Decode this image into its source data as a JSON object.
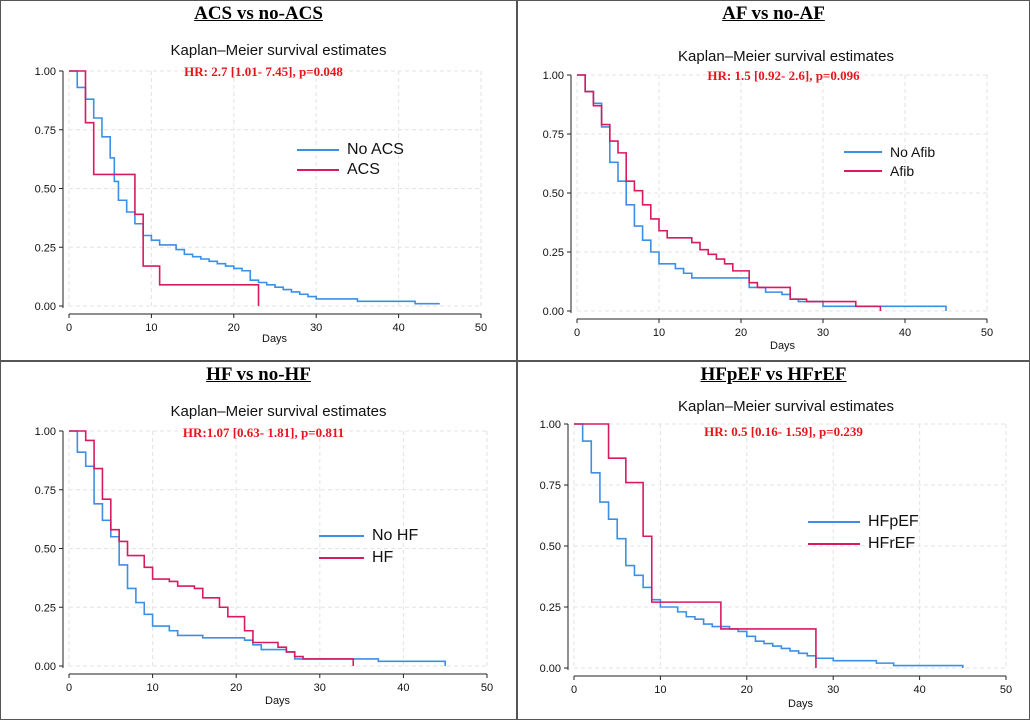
{
  "colors": {
    "blue": "#3d8fe6",
    "red": "#d81a60",
    "hr_red": "#e8141c",
    "grid": "#e3e3e3"
  },
  "chart_data": [
    {
      "type": "line",
      "subtype": "kaplan-meier-step",
      "panel_title": "ACS vs no-ACS",
      "title": "Kaplan–Meier survival estimates",
      "annotation": "HR:  2.7 [1.01- 7.45], p=0.048",
      "xlabel": "Days",
      "ylabel": "",
      "xlim": [
        0,
        50
      ],
      "ylim": [
        0,
        1
      ],
      "xticks": [
        0,
        10,
        20,
        30,
        40,
        50
      ],
      "yticks": [
        "0.00",
        "0.25",
        "0.50",
        "0.75",
        "1.00"
      ],
      "legend": "center-right",
      "series": [
        {
          "name": "No ACS",
          "color": "#3d8fe6",
          "points": [
            [
              0,
              1.0
            ],
            [
              1,
              0.93
            ],
            [
              2,
              0.88
            ],
            [
              3,
              0.8
            ],
            [
              4,
              0.72
            ],
            [
              5,
              0.63
            ],
            [
              5.5,
              0.53
            ],
            [
              6,
              0.45
            ],
            [
              7,
              0.4
            ],
            [
              8,
              0.35
            ],
            [
              9,
              0.3
            ],
            [
              10,
              0.28
            ],
            [
              11,
              0.26
            ],
            [
              13,
              0.24
            ],
            [
              14,
              0.22
            ],
            [
              15,
              0.21
            ],
            [
              16,
              0.2
            ],
            [
              17,
              0.19
            ],
            [
              18,
              0.18
            ],
            [
              19,
              0.17
            ],
            [
              20,
              0.16
            ],
            [
              21,
              0.15
            ],
            [
              22,
              0.11
            ],
            [
              23,
              0.1
            ],
            [
              24,
              0.09
            ],
            [
              25,
              0.08
            ],
            [
              26,
              0.07
            ],
            [
              27,
              0.06
            ],
            [
              28,
              0.05
            ],
            [
              29,
              0.04
            ],
            [
              30,
              0.03
            ],
            [
              34,
              0.03
            ],
            [
              35,
              0.02
            ],
            [
              42,
              0.01
            ],
            [
              45,
              0.01
            ]
          ]
        },
        {
          "name": "ACS",
          "color": "#d81a60",
          "points": [
            [
              0,
              1.0
            ],
            [
              2,
              0.78
            ],
            [
              3,
              0.56
            ],
            [
              8,
              0.39
            ],
            [
              9,
              0.17
            ],
            [
              11,
              0.09
            ],
            [
              23,
              0.0
            ]
          ]
        }
      ]
    },
    {
      "type": "line",
      "subtype": "kaplan-meier-step",
      "panel_title": "AF vs no-AF",
      "title": "Kaplan–Meier survival estimates",
      "annotation": "HR: 1.5 [0.92- 2.6], p=0.096",
      "xlabel": "Days",
      "ylabel": "",
      "xlim": [
        0,
        50
      ],
      "ylim": [
        0,
        1
      ],
      "xticks": [
        0,
        10,
        20,
        30,
        40,
        50
      ],
      "yticks": [
        "0.00",
        "0.25",
        "0.50",
        "0.75",
        "1.00"
      ],
      "legend": "center-right",
      "series": [
        {
          "name": "No Afib",
          "color": "#3d8fe6",
          "points": [
            [
              0,
              1.0
            ],
            [
              1,
              0.93
            ],
            [
              2,
              0.88
            ],
            [
              3,
              0.78
            ],
            [
              4,
              0.63
            ],
            [
              5,
              0.55
            ],
            [
              6,
              0.45
            ],
            [
              7,
              0.36
            ],
            [
              8,
              0.3
            ],
            [
              9,
              0.25
            ],
            [
              10,
              0.2
            ],
            [
              12,
              0.18
            ],
            [
              13,
              0.16
            ],
            [
              14,
              0.14
            ],
            [
              21,
              0.1
            ],
            [
              23,
              0.08
            ],
            [
              25,
              0.07
            ],
            [
              26,
              0.05
            ],
            [
              27,
              0.04
            ],
            [
              30,
              0.02
            ],
            [
              45,
              0.0
            ]
          ]
        },
        {
          "name": "Afib",
          "color": "#d81a60",
          "points": [
            [
              0,
              1.0
            ],
            [
              1,
              0.93
            ],
            [
              2,
              0.87
            ],
            [
              3,
              0.79
            ],
            [
              4,
              0.72
            ],
            [
              5,
              0.67
            ],
            [
              6,
              0.55
            ],
            [
              7,
              0.51
            ],
            [
              8,
              0.45
            ],
            [
              9,
              0.39
            ],
            [
              10,
              0.34
            ],
            [
              11,
              0.31
            ],
            [
              14,
              0.29
            ],
            [
              15,
              0.26
            ],
            [
              16,
              0.24
            ],
            [
              17,
              0.22
            ],
            [
              18,
              0.2
            ],
            [
              19,
              0.17
            ],
            [
              21,
              0.12
            ],
            [
              22,
              0.1
            ],
            [
              26,
              0.05
            ],
            [
              28,
              0.04
            ],
            [
              34,
              0.02
            ],
            [
              37,
              0.0
            ]
          ]
        }
      ]
    },
    {
      "type": "line",
      "subtype": "kaplan-meier-step",
      "panel_title": "HF vs no-HF",
      "title": "Kaplan–Meier survival estimates",
      "annotation": "HR:1.07 [0.63- 1.81], p=0.811",
      "xlabel": "Days",
      "ylabel": "",
      "xlim": [
        0,
        50
      ],
      "ylim": [
        0,
        1
      ],
      "xticks": [
        0,
        10,
        20,
        30,
        40,
        50
      ],
      "yticks": [
        "0.00",
        "0.25",
        "0.50",
        "0.75",
        "1.00"
      ],
      "legend": "center-right",
      "series": [
        {
          "name": "No HF",
          "color": "#3d8fe6",
          "points": [
            [
              0,
              1.0
            ],
            [
              1,
              0.91
            ],
            [
              2,
              0.85
            ],
            [
              3,
              0.69
            ],
            [
              4,
              0.62
            ],
            [
              5,
              0.55
            ],
            [
              6,
              0.43
            ],
            [
              7,
              0.33
            ],
            [
              8,
              0.27
            ],
            [
              9,
              0.22
            ],
            [
              10,
              0.17
            ],
            [
              12,
              0.15
            ],
            [
              13,
              0.13
            ],
            [
              16,
              0.12
            ],
            [
              21,
              0.11
            ],
            [
              22,
              0.09
            ],
            [
              23,
              0.07
            ],
            [
              26,
              0.06
            ],
            [
              27,
              0.03
            ],
            [
              37,
              0.02
            ],
            [
              45,
              0.0
            ]
          ]
        },
        {
          "name": "HF",
          "color": "#d81a60",
          "points": [
            [
              0,
              1.0
            ],
            [
              2,
              0.96
            ],
            [
              3,
              0.84
            ],
            [
              4,
              0.71
            ],
            [
              5,
              0.58
            ],
            [
              6,
              0.53
            ],
            [
              7,
              0.47
            ],
            [
              9,
              0.42
            ],
            [
              10,
              0.37
            ],
            [
              12,
              0.36
            ],
            [
              13,
              0.34
            ],
            [
              15,
              0.33
            ],
            [
              16,
              0.29
            ],
            [
              18,
              0.25
            ],
            [
              19,
              0.21
            ],
            [
              21,
              0.15
            ],
            [
              22,
              0.1
            ],
            [
              25,
              0.08
            ],
            [
              26,
              0.06
            ],
            [
              27,
              0.04
            ],
            [
              28,
              0.03
            ],
            [
              34,
              0.0
            ]
          ]
        }
      ]
    },
    {
      "type": "line",
      "subtype": "kaplan-meier-step",
      "panel_title": "HFpEF vs HFrEF",
      "title": "Kaplan–Meier survival estimates",
      "annotation": "HR: 0.5 [0.16- 1.59], p=0.239",
      "xlabel": "Days",
      "ylabel": "",
      "xlim": [
        0,
        50
      ],
      "ylim": [
        0,
        1
      ],
      "xticks": [
        0,
        10,
        20,
        30,
        40,
        50
      ],
      "yticks": [
        "0.00",
        "0.25",
        "0.50",
        "0.75",
        "1.00"
      ],
      "legend": "center-right",
      "series": [
        {
          "name": "HFpEF",
          "color": "#3d8fe6",
          "points": [
            [
              0,
              1.0
            ],
            [
              1,
              0.93
            ],
            [
              2,
              0.8
            ],
            [
              3,
              0.68
            ],
            [
              4,
              0.61
            ],
            [
              5,
              0.53
            ],
            [
              6,
              0.42
            ],
            [
              7,
              0.38
            ],
            [
              8,
              0.33
            ],
            [
              9,
              0.28
            ],
            [
              10,
              0.25
            ],
            [
              12,
              0.23
            ],
            [
              13,
              0.21
            ],
            [
              14,
              0.2
            ],
            [
              15,
              0.18
            ],
            [
              16,
              0.17
            ],
            [
              18,
              0.16
            ],
            [
              19,
              0.15
            ],
            [
              20,
              0.13
            ],
            [
              21,
              0.11
            ],
            [
              22,
              0.1
            ],
            [
              23,
              0.09
            ],
            [
              24,
              0.08
            ],
            [
              25,
              0.07
            ],
            [
              26,
              0.06
            ],
            [
              27,
              0.05
            ],
            [
              28,
              0.04
            ],
            [
              30,
              0.03
            ],
            [
              35,
              0.02
            ],
            [
              37,
              0.01
            ],
            [
              45,
              0.0
            ]
          ]
        },
        {
          "name": "HFrEF",
          "color": "#d81a60",
          "points": [
            [
              0,
              1.0
            ],
            [
              4,
              0.86
            ],
            [
              6,
              0.76
            ],
            [
              8,
              0.54
            ],
            [
              9,
              0.27
            ],
            [
              17,
              0.16
            ],
            [
              28,
              0.0
            ]
          ]
        }
      ]
    }
  ]
}
